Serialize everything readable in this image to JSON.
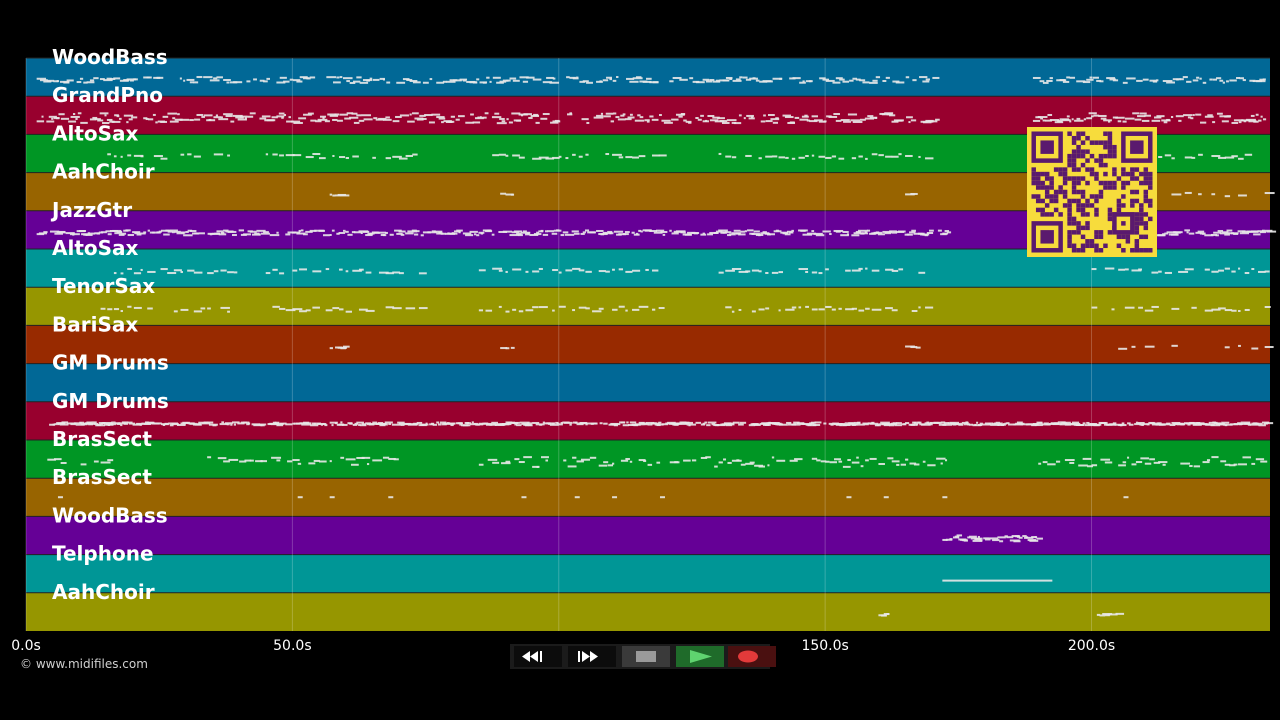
{
  "tracks": [
    {
      "name": "WoodBass",
      "color": "#016896",
      "pattern": "melody"
    },
    {
      "name": "GrandPno",
      "color": "#98002e",
      "pattern": "chords"
    },
    {
      "name": "AltoSax",
      "color": "#009624",
      "pattern": "phrases"
    },
    {
      "name": "AahChoir",
      "color": "#986400",
      "pattern": "sparse"
    },
    {
      "name": "JazzGtr",
      "color": "#650096",
      "pattern": "dense"
    },
    {
      "name": "AltoSax",
      "color": "#009696",
      "pattern": "phrases"
    },
    {
      "name": "TenorSax",
      "color": "#969600",
      "pattern": "phrases"
    },
    {
      "name": "BariSax",
      "color": "#982a00",
      "pattern": "sparse"
    },
    {
      "name": "GM Drums",
      "color": "#016896",
      "pattern": "empty"
    },
    {
      "name": "GM Drums",
      "color": "#98002e",
      "pattern": "drumline"
    },
    {
      "name": "BrasSect",
      "color": "#009624",
      "pattern": "brass"
    },
    {
      "name": "BrasSect",
      "color": "#986400",
      "pattern": "dots"
    },
    {
      "name": "WoodBass",
      "color": "#650096",
      "pattern": "late"
    },
    {
      "name": "Telphone",
      "color": "#009696",
      "pattern": "line"
    },
    {
      "name": "AahChoir",
      "color": "#969600",
      "pattern": "few"
    }
  ],
  "timeline": {
    "max_seconds": 233.5,
    "ticks": [
      {
        "value": 0,
        "label": "0.0s"
      },
      {
        "value": 50,
        "label": "50.0s"
      },
      {
        "value": 150,
        "label": "150.0s"
      },
      {
        "value": 200,
        "label": "200.0s"
      }
    ],
    "grid_values": [
      0,
      50,
      100,
      150,
      200
    ]
  },
  "copyright": "© www.midifiles.com",
  "transport": {
    "buttons": [
      {
        "name": "rewind",
        "icon": "rewind-icon"
      },
      {
        "name": "fast-forward",
        "icon": "fast-forward-icon"
      },
      {
        "name": "stop",
        "icon": "stop-icon"
      },
      {
        "name": "play",
        "icon": "play-icon"
      },
      {
        "name": "record",
        "icon": "record-icon"
      }
    ]
  },
  "qr": {
    "fg": "#5a1a6e",
    "bg": "#f7dc3c"
  }
}
